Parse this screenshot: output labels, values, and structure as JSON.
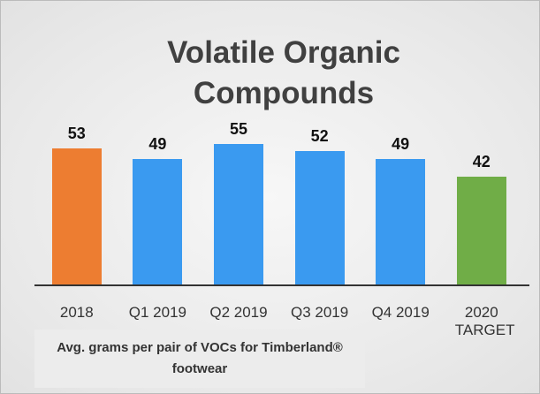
{
  "chart_data": {
    "type": "bar",
    "title": "Volatile Organic Compounds",
    "categories": [
      "2018",
      "Q1 2019",
      "Q2 2019",
      "Q3 2019",
      "Q4 2019",
      "2020 TARGET"
    ],
    "values": [
      53,
      49,
      55,
      52,
      49,
      42
    ],
    "colors": [
      "#ed7d31",
      "#3a9af0",
      "#3a9af0",
      "#3a9af0",
      "#3a9af0",
      "#70ad47"
    ],
    "note": "Avg. grams per pair of VOCs for Timberland® footwear"
  }
}
